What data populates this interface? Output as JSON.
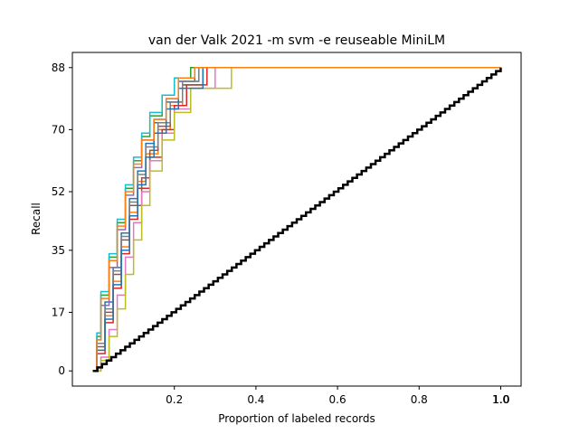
{
  "chart_data": {
    "type": "line",
    "title": "van der Valk 2021 -m svm -e reuseable MiniLM",
    "xlabel": "Proportion of labeled records",
    "ylabel": "Recall",
    "xlim": [
      -0.05,
      1.05
    ],
    "ylim": [
      -4.4,
      92.4
    ],
    "x_ticks": [
      0.2,
      0.4,
      0.6,
      0.8,
      1.0
    ],
    "x_tick_labels": [
      "0.2",
      "0.4",
      "0.6",
      "0.8",
      "1.0"
    ],
    "x_tick_labels_overlay": [
      {
        "x": 1.0,
        "label": "1.0"
      }
    ],
    "y_ticks": [
      0,
      17,
      35,
      52,
      70,
      88
    ],
    "y_tick_labels": [
      "0",
      "17",
      "35",
      "52",
      "70",
      "88"
    ],
    "grid": false,
    "legend": "none",
    "total_relevant": 88,
    "random_baseline": {
      "color": "#000000",
      "style": "step",
      "x": [
        0.0,
        1.0
      ],
      "y": [
        0,
        88
      ]
    },
    "series_style": "step",
    "series_count": 12,
    "series": [
      {
        "color": "#1f77b4",
        "x": [
          0.0,
          0.01,
          0.03,
          0.05,
          0.07,
          0.09,
          0.11,
          0.13,
          0.15,
          0.18,
          0.21,
          0.25,
          1.0
        ],
        "y": [
          0,
          8,
          20,
          30,
          40,
          50,
          58,
          66,
          72,
          78,
          84,
          88,
          88
        ]
      },
      {
        "color": "#ff7f0e",
        "x": [
          0.0,
          0.01,
          0.03,
          0.05,
          0.07,
          0.09,
          0.11,
          0.13,
          0.16,
          0.19,
          0.22,
          0.27,
          1.0
        ],
        "y": [
          0,
          6,
          16,
          26,
          36,
          46,
          55,
          63,
          70,
          77,
          83,
          88,
          88
        ]
      },
      {
        "color": "#2ca02c",
        "x": [
          0.0,
          0.01,
          0.02,
          0.04,
          0.06,
          0.08,
          0.1,
          0.12,
          0.14,
          0.17,
          0.2,
          0.24,
          1.0
        ],
        "y": [
          0,
          10,
          22,
          33,
          43,
          53,
          61,
          68,
          74,
          80,
          85,
          88,
          88
        ]
      },
      {
        "color": "#d62728",
        "x": [
          0.0,
          0.01,
          0.03,
          0.05,
          0.07,
          0.09,
          0.11,
          0.14,
          0.17,
          0.2,
          0.23,
          0.28,
          1.0
        ],
        "y": [
          0,
          5,
          14,
          24,
          34,
          44,
          53,
          62,
          70,
          77,
          83,
          88,
          88
        ]
      },
      {
        "color": "#9467bd",
        "x": [
          0.0,
          0.01,
          0.02,
          0.04,
          0.06,
          0.08,
          0.1,
          0.12,
          0.15,
          0.18,
          0.21,
          0.26,
          1.0
        ],
        "y": [
          0,
          9,
          19,
          30,
          41,
          51,
          59,
          67,
          73,
          79,
          84,
          88,
          88
        ]
      },
      {
        "color": "#8c564b",
        "x": [
          0.0,
          0.01,
          0.03,
          0.05,
          0.07,
          0.09,
          0.12,
          0.14,
          0.16,
          0.19,
          0.22,
          0.27,
          1.0
        ],
        "y": [
          0,
          7,
          17,
          28,
          38,
          48,
          56,
          64,
          71,
          78,
          83,
          88,
          88
        ]
      },
      {
        "color": "#e377c2",
        "x": [
          0.0,
          0.02,
          0.04,
          0.06,
          0.08,
          0.1,
          0.12,
          0.14,
          0.17,
          0.2,
          0.24,
          0.3,
          1.0
        ],
        "y": [
          0,
          4,
          12,
          22,
          33,
          43,
          52,
          61,
          69,
          76,
          82,
          88,
          88
        ]
      },
      {
        "color": "#7f7f7f",
        "x": [
          0.0,
          0.01,
          0.03,
          0.05,
          0.07,
          0.09,
          0.11,
          0.13,
          0.16,
          0.19,
          0.22,
          0.26,
          1.0
        ],
        "y": [
          0,
          8,
          18,
          29,
          39,
          49,
          57,
          65,
          72,
          78,
          84,
          88,
          88
        ]
      },
      {
        "color": "#bcbd22",
        "x": [
          0.0,
          0.02,
          0.04,
          0.06,
          0.08,
          0.1,
          0.12,
          0.14,
          0.17,
          0.2,
          0.24,
          0.34,
          1.0
        ],
        "y": [
          0,
          3,
          10,
          18,
          28,
          38,
          48,
          58,
          67,
          75,
          82,
          88,
          88
        ]
      },
      {
        "color": "#17becf",
        "x": [
          0.0,
          0.01,
          0.02,
          0.04,
          0.06,
          0.08,
          0.1,
          0.12,
          0.14,
          0.17,
          0.2,
          0.25,
          1.0
        ],
        "y": [
          0,
          11,
          23,
          34,
          44,
          54,
          62,
          69,
          75,
          80,
          85,
          88,
          88
        ]
      },
      {
        "color": "#1f77b4",
        "x": [
          0.0,
          0.01,
          0.03,
          0.05,
          0.07,
          0.09,
          0.11,
          0.13,
          0.15,
          0.18,
          0.21,
          0.27,
          1.0
        ],
        "y": [
          0,
          6,
          15,
          25,
          35,
          45,
          54,
          62,
          69,
          76,
          82,
          88,
          88
        ]
      },
      {
        "color": "#ff7f0e",
        "x": [
          0.0,
          0.01,
          0.02,
          0.04,
          0.06,
          0.08,
          0.1,
          0.12,
          0.15,
          0.18,
          0.21,
          0.25,
          1.0
        ],
        "y": [
          0,
          9,
          21,
          32,
          42,
          52,
          60,
          67,
          73,
          79,
          85,
          88,
          88
        ]
      }
    ]
  }
}
